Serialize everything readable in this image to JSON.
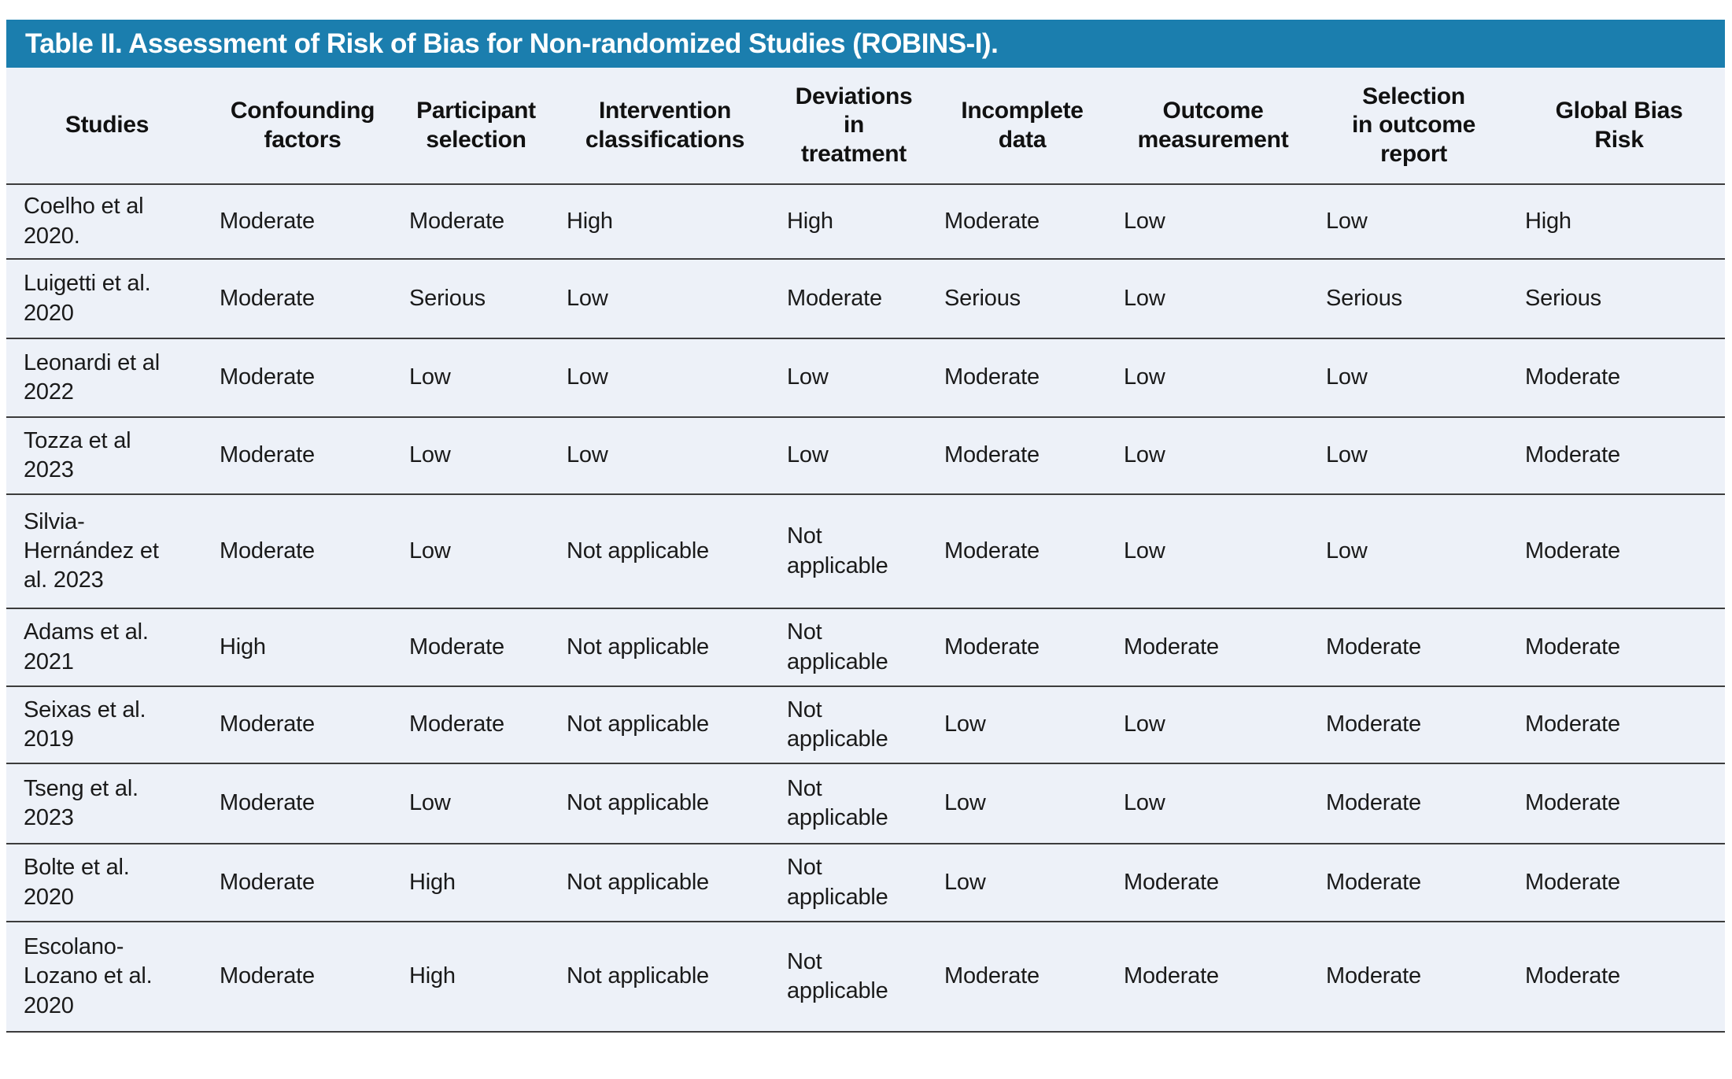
{
  "title_bar": {
    "title": "Table II. Assessment of Risk of Bias for Non-randomized Studies (ROBINS-I)."
  },
  "table": {
    "columns": [
      "Studies",
      "Confounding\nfactors",
      "Participant\nselection",
      "Intervention\nclassifications",
      "Deviations\nin\ntreatment",
      "Incomplete\ndata",
      "Outcome\nmeasurement",
      "Selection\nin outcome\nreport",
      "Global Bias\nRisk"
    ],
    "rows": [
      {
        "study": "Coelho et al\n2020.",
        "values": [
          "Moderate",
          "Moderate",
          "High",
          "High",
          "Moderate",
          "Low",
          "Low",
          "High"
        ]
      },
      {
        "study": "Luigetti et al.\n2020",
        "values": [
          "Moderate",
          "Serious",
          "Low",
          "Moderate",
          "Serious",
          "Low",
          "Serious",
          "Serious"
        ]
      },
      {
        "study": "Leonardi et al\n2022",
        "values": [
          "Moderate",
          "Low",
          "Low",
          "Low",
          "Moderate",
          "Low",
          "Low",
          "Moderate"
        ]
      },
      {
        "study": "Tozza et al\n2023",
        "values": [
          "Moderate",
          "Low",
          "Low",
          "Low",
          "Moderate",
          "Low",
          "Low",
          "Moderate"
        ]
      },
      {
        "study": "Silvia-\nHernández et\nal. 2023",
        "values": [
          "Moderate",
          "Low",
          "Not applicable",
          "Not\napplicable",
          "Moderate",
          "Low",
          "Low",
          "Moderate"
        ]
      },
      {
        "study": "Adams et al.\n2021",
        "values": [
          "High",
          "Moderate",
          "Not applicable",
          "Not\napplicable",
          "Moderate",
          "Moderate",
          "Moderate",
          "Moderate"
        ]
      },
      {
        "study": "Seixas et al.\n2019",
        "values": [
          "Moderate",
          "Moderate",
          "Not applicable",
          "Not\napplicable",
          "Low",
          "Low",
          "Moderate",
          "Moderate"
        ]
      },
      {
        "study": "Tseng et al.\n2023",
        "values": [
          "Moderate",
          "Low",
          "Not applicable",
          "Not\napplicable",
          "Low",
          "Low",
          "Moderate",
          "Moderate"
        ]
      },
      {
        "study": "Bolte et al.\n2020",
        "values": [
          "Moderate",
          "High",
          "Not applicable",
          "Not\napplicable",
          "Low",
          "Moderate",
          "Moderate",
          "Moderate"
        ]
      },
      {
        "study": "Escolano-\nLozano et al.\n2020",
        "values": [
          "Moderate",
          "High",
          "Not applicable",
          "Not\napplicable",
          "Moderate",
          "Moderate",
          "Moderate",
          "Moderate"
        ]
      }
    ]
  },
  "colors": {
    "header_bar": "#1b7eae",
    "table_background": "#edf1f8",
    "row_line": "#3c3c3c",
    "title_text": "#ffffff",
    "body_text": "#1a1a1a"
  }
}
